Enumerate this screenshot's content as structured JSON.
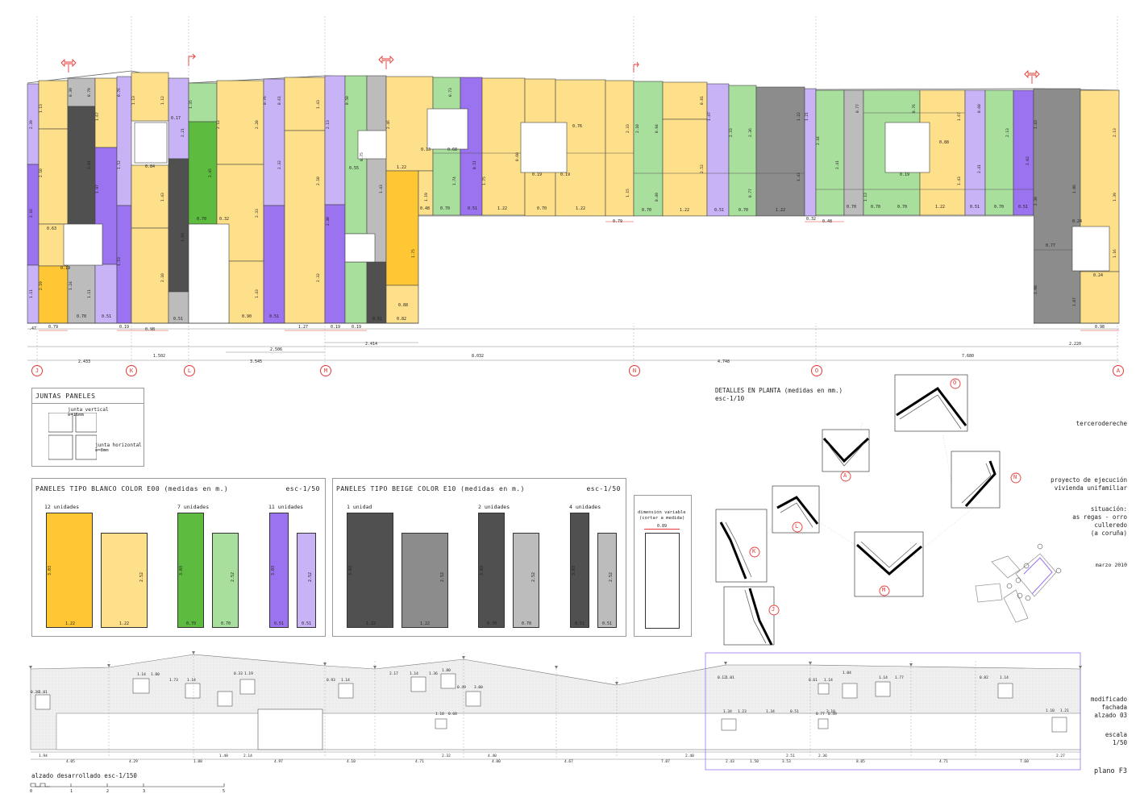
{
  "elevation": {
    "axes": [
      "J",
      "K",
      "L",
      "M",
      "N",
      "O",
      "A"
    ],
    "dimensions": [
      "2.433",
      "1.502",
      "3.545",
      "8.032",
      "4.748",
      "7.680",
      "2.220"
    ],
    "sub_dimensions": [
      "2.414",
      "2.506"
    ],
    "colors": {
      "white_full": "#ffd966",
      "white_cut": "#ffe38a",
      "beige": "#ffe08a",
      "green": "#5dbb3f",
      "green_light": "#a9df9c",
      "purple": "#9b72f0",
      "purple_light": "#c8b3f7",
      "gray_dark": "#505050",
      "gray_mid": "#8c8c8c",
      "gray_light": "#bcbcbc",
      "orange": "#ffc733"
    }
  },
  "joints": {
    "title": "JUNTAS PANELES",
    "vertical": "junta vertical",
    "vertical_size": "e=16mm",
    "horizontal": "junta horizontal",
    "horizontal_size": "e=8mm"
  },
  "panels_white": {
    "title": "PANELES TIPO BLANCO COLOR E00  (medidas en m.)",
    "scale": "esc-1/50",
    "groups": [
      {
        "units": "12 unidades",
        "h": "3.03",
        "w1": "1.22",
        "w2": "1.22",
        "h2": "2.52"
      },
      {
        "units": "7 unidades",
        "h": "3.03",
        "w1": "0.70",
        "w2": "0.70",
        "h2": "2.52"
      },
      {
        "units": "11 unidades",
        "h": "3.03",
        "w1": "0.51",
        "w2": "0.51",
        "h2": "2.52"
      }
    ]
  },
  "panels_beige": {
    "title": "PANELES TIPO BEIGE COLOR E10  (medidas en m.)",
    "scale": "esc-1/50",
    "groups": [
      {
        "units": "1 unidad",
        "h": "3.03",
        "w1": "1.22",
        "w2": "1.22",
        "h2": "2.52"
      },
      {
        "units": "2 unidades",
        "h": "3.03",
        "w1": "0.70",
        "w2": "0.70",
        "h2": "2.52"
      },
      {
        "units": "4 unidades",
        "h": "3.03",
        "w1": "0.51",
        "w2": "0.51",
        "h2": "2.52"
      }
    ]
  },
  "variable": {
    "label1": "dimensión variable",
    "label2": "(cortar a medida)",
    "value": "0.89"
  },
  "plan_details": {
    "title": "DETALLES EN PLANTA (medidas en mm.)",
    "scale": "esc-1/10",
    "labels": [
      "O",
      "A",
      "N",
      "L",
      "K",
      "M",
      "J"
    ]
  },
  "title_block": {
    "author": "tercerodereche",
    "project1": "proyecto de ejecución",
    "project2": "vivienda unifamiliar",
    "situ1": "situación:",
    "situ2": "as regas - orro",
    "situ3": "culleredo",
    "situ4": "(a coruña)",
    "date": "marzo 2010",
    "sheet1": "modificado",
    "sheet2": "fachada",
    "sheet3": "alzado 03",
    "scale1": "escala",
    "scale2": "1/50",
    "plane": "plano F3"
  },
  "developed": {
    "title": "alzado desarrollado esc-1/150",
    "scale_ticks": [
      "0",
      "1",
      "2",
      "3",
      "5"
    ]
  }
}
